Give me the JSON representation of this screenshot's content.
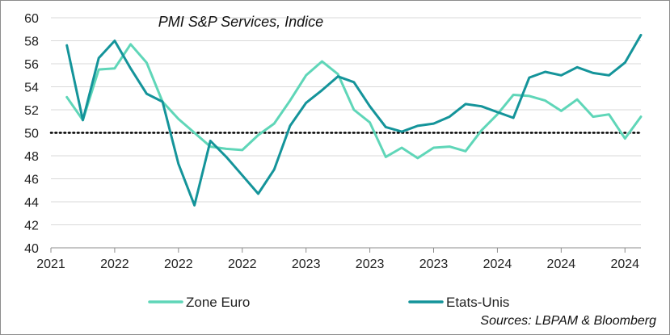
{
  "chart_data": {
    "type": "line",
    "title": "PMI S&P Services, Indice",
    "source": "Sources: LBPAM & Bloomberg",
    "xlabel": "",
    "ylabel": "",
    "ylim": [
      40,
      60
    ],
    "yticks": [
      40,
      42,
      44,
      46,
      48,
      50,
      52,
      54,
      56,
      58,
      60
    ],
    "xlim": [
      0,
      37
    ],
    "xticks": [
      {
        "pos": 0,
        "label": "2021"
      },
      {
        "pos": 4,
        "label": "2022"
      },
      {
        "pos": 8,
        "label": "2022"
      },
      {
        "pos": 12,
        "label": "2022"
      },
      {
        "pos": 16,
        "label": "2023"
      },
      {
        "pos": 20,
        "label": "2023"
      },
      {
        "pos": 24,
        "label": "2023"
      },
      {
        "pos": 28,
        "label": "2024"
      },
      {
        "pos": 32,
        "label": "2024"
      },
      {
        "pos": 36,
        "label": "2024"
      }
    ],
    "reference_line": 50,
    "x": [
      1,
      2,
      3,
      4,
      5,
      6,
      7,
      8,
      9,
      10,
      11,
      12,
      13,
      14,
      15,
      16,
      17,
      18,
      19,
      20,
      21,
      22,
      23,
      24,
      25,
      26,
      27,
      28,
      29,
      30,
      31,
      32,
      33,
      34,
      35,
      36,
      37
    ],
    "series": [
      {
        "name": "Zone Euro",
        "color": "#5fd6b8",
        "values": [
          53.1,
          51.1,
          55.5,
          55.6,
          57.7,
          56.1,
          52.7,
          51.2,
          50.0,
          48.8,
          48.6,
          48.5,
          49.8,
          50.8,
          52.8,
          55.0,
          56.2,
          55.1,
          52.0,
          50.9,
          47.9,
          48.7,
          47.8,
          48.7,
          48.8,
          48.4,
          50.2,
          51.6,
          53.3,
          53.2,
          52.8,
          51.9,
          52.9,
          51.4,
          51.6,
          49.5,
          51.4
        ]
      },
      {
        "name": "Etats-Unis",
        "color": "#14949a",
        "values": [
          57.6,
          51.1,
          56.5,
          58.0,
          55.6,
          53.4,
          52.7,
          47.3,
          43.7,
          49.3,
          47.9,
          46.3,
          44.7,
          46.8,
          50.6,
          52.6,
          53.7,
          54.9,
          54.4,
          52.3,
          50.5,
          50.1,
          50.6,
          50.8,
          51.4,
          52.5,
          52.3,
          51.8,
          51.3,
          54.8,
          55.3,
          55.0,
          55.7,
          55.2,
          55.0,
          56.1,
          58.5
        ]
      }
    ]
  }
}
